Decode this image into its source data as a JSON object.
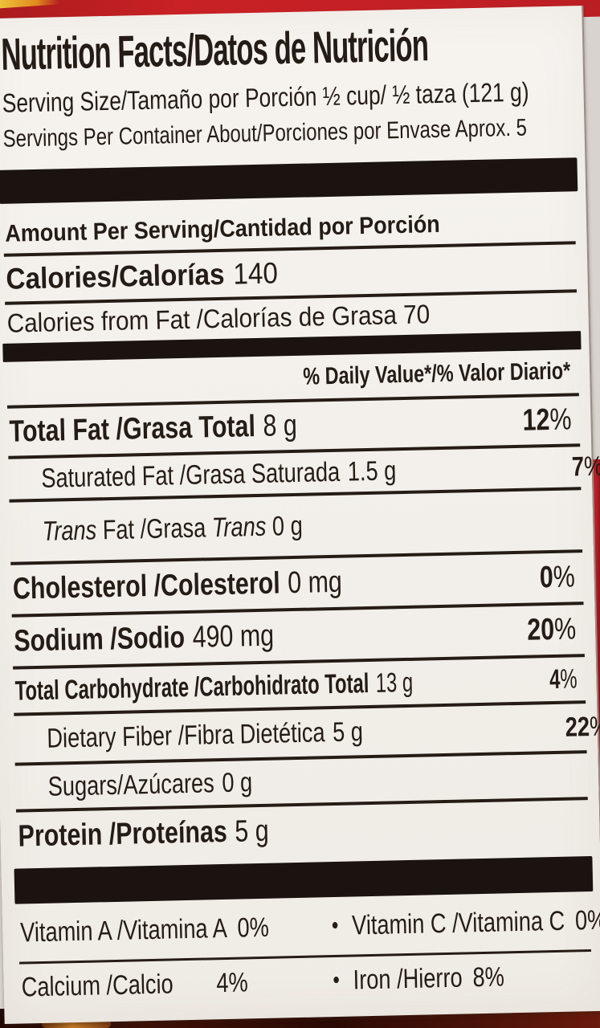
{
  "label": {
    "title": "Nutrition Facts/Datos de Nutrición",
    "serving_size": "Serving Size/Tamaño por Porción ½ cup/ ½ taza (121 g)",
    "servings_per_container": "Servings Per Container About/Porciones por Envase Aprox. 5",
    "amount_per_serving": "Amount Per Serving/Cantidad por Porción",
    "calories": {
      "label": "Calories/Calorías",
      "value": "140"
    },
    "calories_from_fat": "Calories from Fat /Calorías de Grasa 70",
    "daily_value_header": "% Daily Value*/% Valor Diario*",
    "percent_sign": "%",
    "bullet": "•",
    "rows": {
      "total_fat": {
        "label": "Total Fat /Grasa Total",
        "value": "8 g",
        "dv": "12"
      },
      "saturated_fat": {
        "label": "Saturated Fat /Grasa Saturada",
        "value": "1.5 g",
        "dv": "7"
      },
      "trans_fat": {
        "italic1": "Trans",
        "mid": " Fat /Grasa ",
        "italic2": "Trans",
        "value": " 0 g"
      },
      "cholesterol": {
        "label": "Cholesterol /Colesterol",
        "value": "0 mg",
        "dv": "0"
      },
      "sodium": {
        "label": "Sodium /Sodio",
        "value": "490 mg",
        "dv": "20"
      },
      "total_carbohydrate": {
        "label": "Total Carbohydrate /Carbohidrato Total",
        "value": "13 g",
        "dv": "4"
      },
      "dietary_fiber": {
        "label": "Dietary Fiber /Fibra Dietética",
        "value": "5 g",
        "dv": "22"
      },
      "sugars": {
        "label": "Sugars/Azúcares",
        "value": "0 g"
      },
      "protein": {
        "label": "Protein /Proteínas",
        "value": "5 g"
      }
    },
    "micronutrients": {
      "row1": {
        "left": "Vitamin A /Vitamina A",
        "left_dv": "0",
        "right": "Vitamin C /Vitamina C",
        "right_dv": "0"
      },
      "row2": {
        "left": "Calcium /Calcio",
        "left_dv": "4",
        "right": "Iron /Hierro",
        "right_dv": "8"
      }
    },
    "colors": {
      "accent_red": "#c2202a",
      "panel": "#f2efea",
      "ink": "#241c15"
    }
  }
}
